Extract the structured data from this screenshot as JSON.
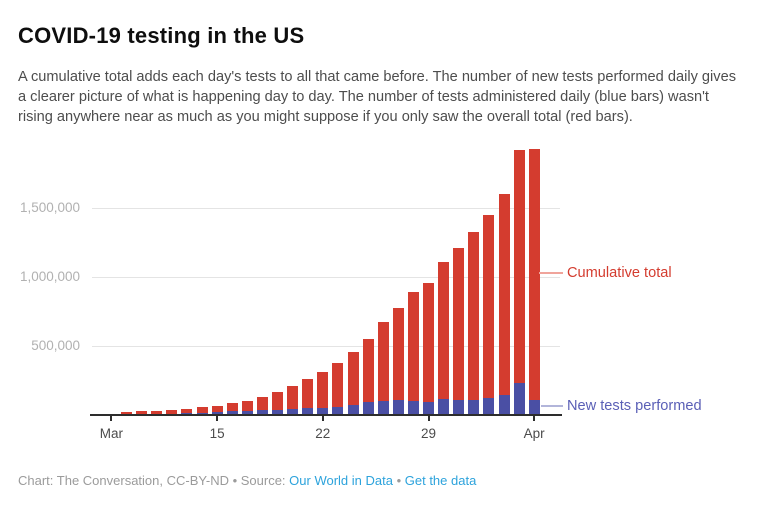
{
  "title": "COVID-19 testing in the US",
  "subtitle": "A cumulative total adds each day's tests to all that came before. The number of new tests performed daily gives a clearer picture of what is happening day to day. The number of tests administered daily (blue bars) wasn't rising anywhere near as much as you might suppose if you only saw the overall total (red bars).",
  "annotations": {
    "cumulative_label": "Cumulative total",
    "new_tests_label": "New tests performed"
  },
  "footer": {
    "credit": "Chart: The Conversation, CC-BY-ND • Source: ",
    "source_link": "Our World in Data",
    "separator": " • ",
    "get_data_link": "Get the data"
  },
  "colors": {
    "cumulative_red": "#d43c2f",
    "new_tests_blue": "#4a4fa4",
    "red_connector": "#f0a49b",
    "blue_connector": "#b2b5da",
    "link_blue": "#2da3dc",
    "gridline_gray": "#e4e4e4",
    "axis_dark": "#2d2d2d"
  },
  "chart_data": {
    "type": "bar",
    "title": "COVID-19 testing in the US",
    "xlabel": "",
    "ylabel": "",
    "grid": "horizontal",
    "legend_position": "right-annotations",
    "overlay": "blue bars drawn in front of red bars from the same zero baseline (not stacked)",
    "ylim": [
      0,
      1950000
    ],
    "x": [
      "Mar 9",
      "Mar 10",
      "Mar 11",
      "Mar 12",
      "Mar 13",
      "Mar 14",
      "Mar 15",
      "Mar 16",
      "Mar 17",
      "Mar 18",
      "Mar 19",
      "Mar 20",
      "Mar 21",
      "Mar 22",
      "Mar 23",
      "Mar 24",
      "Mar 25",
      "Mar 26",
      "Mar 27",
      "Mar 28",
      "Mar 29",
      "Mar 30",
      "Mar 31",
      "Apr 1",
      "Apr 2",
      "Apr 3",
      "Apr 4",
      "Apr 5"
    ],
    "series": [
      {
        "name": "Cumulative total",
        "color": "#d43c2f",
        "values": [
          20000,
          26000,
          32000,
          38000,
          46000,
          56000,
          67000,
          85000,
          104000,
          130000,
          165000,
          208000,
          260000,
          312000,
          378000,
          455000,
          552000,
          676000,
          778000,
          894000,
          960000,
          1107000,
          1213000,
          1324000,
          1449000,
          1600000,
          1920000,
          1930000
        ]
      },
      {
        "name": "New tests performed",
        "color": "#4a4fa4",
        "values": [
          5000,
          7000,
          9000,
          11000,
          14000,
          18000,
          22000,
          29000,
          26000,
          33000,
          38000,
          42000,
          54000,
          52000,
          60000,
          75000,
          94000,
          105000,
          112000,
          101000,
          92000,
          118000,
          112000,
          107000,
          120000,
          146000,
          230000,
          112000
        ]
      }
    ],
    "y_ticks": [
      {
        "label": "500,000",
        "value": 500000
      },
      {
        "label": "1,000,000",
        "value": 1000000
      },
      {
        "label": "1,500,000",
        "value": 1500000
      }
    ],
    "x_ticks": [
      {
        "label": "Mar",
        "day": -1
      },
      {
        "label": "15",
        "day": 6
      },
      {
        "label": "22",
        "day": 13
      },
      {
        "label": "29",
        "day": 20
      },
      {
        "label": "Apr",
        "day": 27
      }
    ]
  }
}
